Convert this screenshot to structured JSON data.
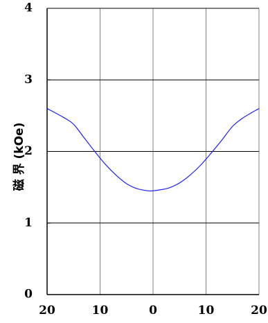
{
  "chart_data": {
    "type": "line",
    "ylabel": "磁 界 (kOe)",
    "xlabel": "",
    "title": "",
    "xlim": [
      -20,
      20
    ],
    "ylim": [
      0,
      4
    ],
    "x_tick_values": [
      -20,
      -10,
      0,
      10,
      20
    ],
    "x_tick_labels": [
      "20",
      "10",
      "0",
      "10",
      "20"
    ],
    "y_tick_values": [
      0,
      1,
      2,
      3,
      4
    ],
    "y_tick_labels": [
      "0",
      "1",
      "2",
      "3",
      "4"
    ],
    "grid": true,
    "series": [
      {
        "color": "#1f1fff",
        "x": [
          -20,
          -17,
          -15,
          -13,
          -11,
          -9,
          -7,
          -5,
          -3,
          -1,
          0,
          1,
          3,
          5,
          7,
          9,
          11,
          13,
          15,
          17,
          20
        ],
        "y": [
          2.6,
          2.48,
          2.38,
          2.19,
          2.0,
          1.82,
          1.67,
          1.55,
          1.48,
          1.45,
          1.45,
          1.46,
          1.49,
          1.56,
          1.67,
          1.81,
          1.98,
          2.16,
          2.35,
          2.47,
          2.6
        ]
      }
    ]
  }
}
